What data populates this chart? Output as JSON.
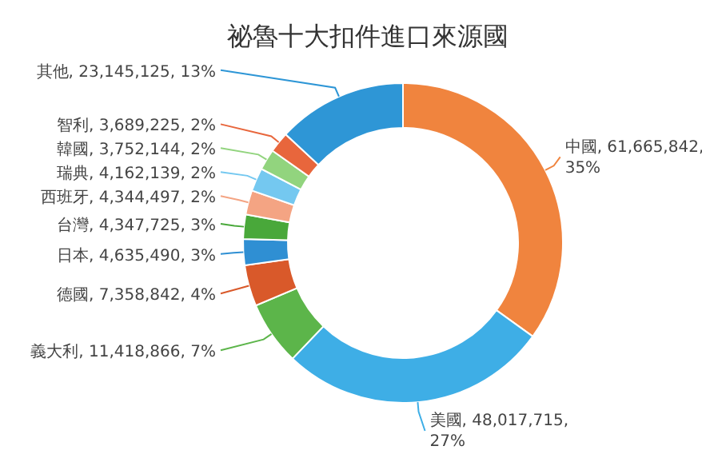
{
  "chart_data": {
    "type": "donut",
    "title": "祕魯十大扣件進口來源國",
    "categories": [
      "中國",
      "美國",
      "義大利",
      "德國",
      "日本",
      "台灣",
      "西班牙",
      "瑞典",
      "韓國",
      "智利",
      "其他"
    ],
    "values": [
      61665842,
      48017715,
      11418866,
      7358842,
      4635490,
      4347725,
      4344497,
      4162139,
      3752144,
      3689225,
      23145125
    ],
    "value_labels": [
      "61,665,842, 35%",
      "48,017,715, 27%",
      "11,418,866, 7%",
      "7,358,842, 4%",
      "4,635,490, 3%",
      "4,347,725, 3%",
      "4,344,497, 2%",
      "4,162,139, 2%",
      "3,752,144, 2%",
      "3,689,225, 2%",
      "23,145,125, 13%"
    ],
    "colors": [
      "#f0843e",
      "#3eaee6",
      "#5cb54a",
      "#d9592a",
      "#2f8fd3",
      "#49a83a",
      "#f4a483",
      "#74c8f0",
      "#92d47e",
      "#e8663c",
      "#2e96d6"
    ]
  }
}
